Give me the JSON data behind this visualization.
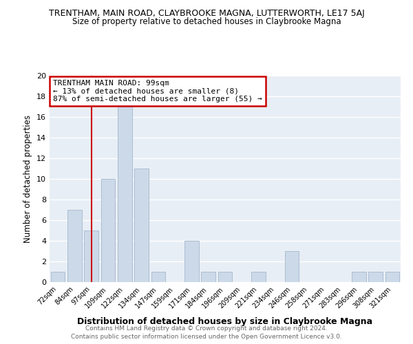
{
  "title": "TRENTHAM, MAIN ROAD, CLAYBROOKE MAGNA, LUTTERWORTH, LE17 5AJ",
  "subtitle": "Size of property relative to detached houses in Claybrooke Magna",
  "xlabel": "Distribution of detached houses by size in Claybrooke Magna",
  "ylabel": "Number of detached properties",
  "bins": [
    "72sqm",
    "84sqm",
    "97sqm",
    "109sqm",
    "122sqm",
    "134sqm",
    "147sqm",
    "159sqm",
    "171sqm",
    "184sqm",
    "196sqm",
    "209sqm",
    "221sqm",
    "234sqm",
    "246sqm",
    "258sqm",
    "271sqm",
    "283sqm",
    "296sqm",
    "308sqm",
    "321sqm"
  ],
  "values": [
    1,
    7,
    5,
    10,
    17,
    11,
    1,
    0,
    4,
    1,
    1,
    0,
    1,
    0,
    3,
    0,
    0,
    0,
    1,
    1,
    1
  ],
  "bar_color": "#ccd9e8",
  "bar_edge_color": "#aabdd4",
  "vline_x_index": 2,
  "vline_color": "#cc0000",
  "annotation_title": "TRENTHAM MAIN ROAD: 99sqm",
  "annotation_line1": "← 13% of detached houses are smaller (8)",
  "annotation_line2": "87% of semi-detached houses are larger (55) →",
  "annotation_box_color": "white",
  "annotation_box_edge_color": "#cc0000",
  "ylim": [
    0,
    20
  ],
  "yticks": [
    0,
    2,
    4,
    6,
    8,
    10,
    12,
    14,
    16,
    18,
    20
  ],
  "footer1": "Contains HM Land Registry data © Crown copyright and database right 2024.",
  "footer2": "Contains public sector information licensed under the Open Government Licence v3.0.",
  "background_color": "#ffffff",
  "plot_bg_color": "#e8eef5",
  "grid_color": "#ffffff"
}
